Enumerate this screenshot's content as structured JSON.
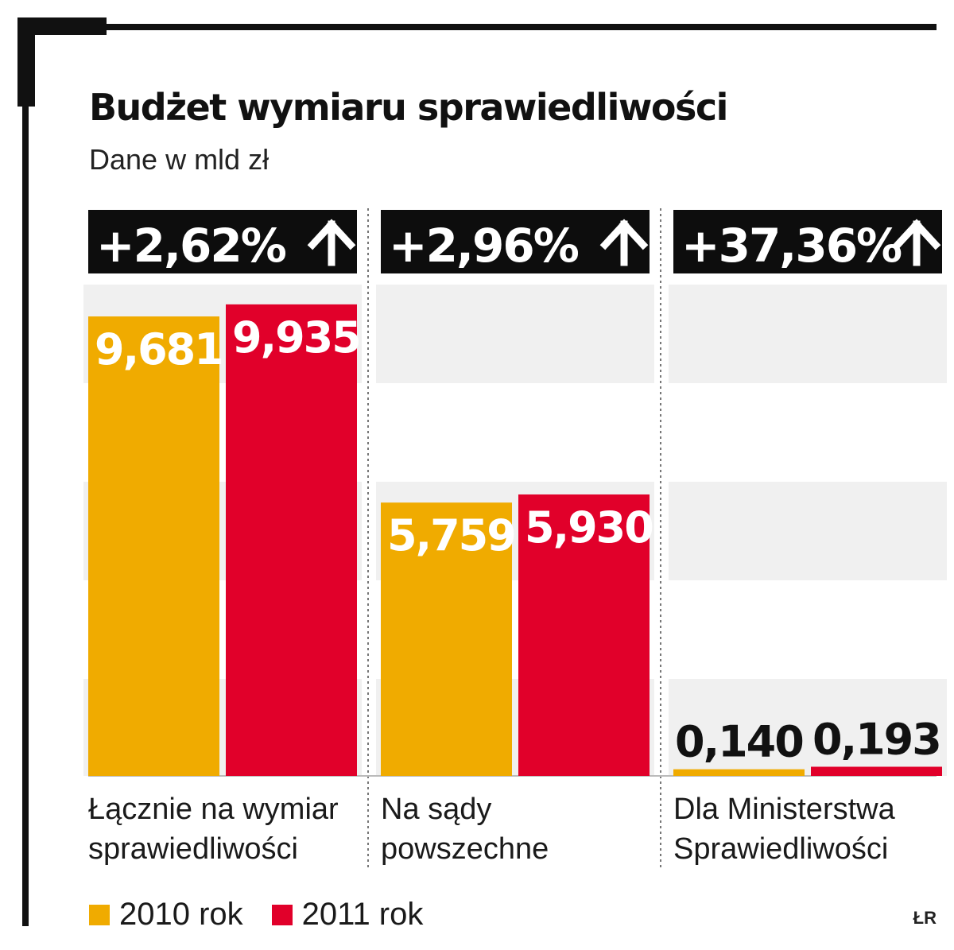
{
  "title": "Budżet wymiaru sprawiedliwości",
  "subtitle": "Dane w mld zł",
  "credit": "ŁR",
  "colors": {
    "series_2010": "#f0ab00",
    "series_2011": "#e1002a",
    "header_bg": "#0d0d0d",
    "band": "#f0f0f0",
    "frame": "#111111"
  },
  "chart_data": {
    "type": "bar",
    "categories": [
      "Łącznie na wymiar sprawiedliwości",
      "Na sądy powszechne",
      "Dla Ministerstwa Sprawiedliwości"
    ],
    "category_lines": [
      [
        "Łącznie na wymiar",
        "sprawiedliwości"
      ],
      [
        "Na sądy",
        "powszechne"
      ],
      [
        "Dla Ministerstwa",
        "Sprawiedliwości"
      ]
    ],
    "series": [
      {
        "name": "2010 rok",
        "values": [
          9.681,
          5.759,
          0.14
        ]
      },
      {
        "name": "2011 rok",
        "values": [
          9.935,
          5.93,
          0.193
        ]
      }
    ],
    "value_labels": [
      [
        "9,681",
        "5,759",
        "0,140"
      ],
      [
        "9,935",
        "5,930",
        "0,193"
      ]
    ],
    "changes": [
      "+2,62%",
      "+2,96%",
      "+37,36%"
    ],
    "change_icon": "arrow-up-icon",
    "ylim": [
      0,
      10
    ],
    "grid": false,
    "legend_position": "bottom-left",
    "xlabel": "",
    "ylabel": ""
  }
}
